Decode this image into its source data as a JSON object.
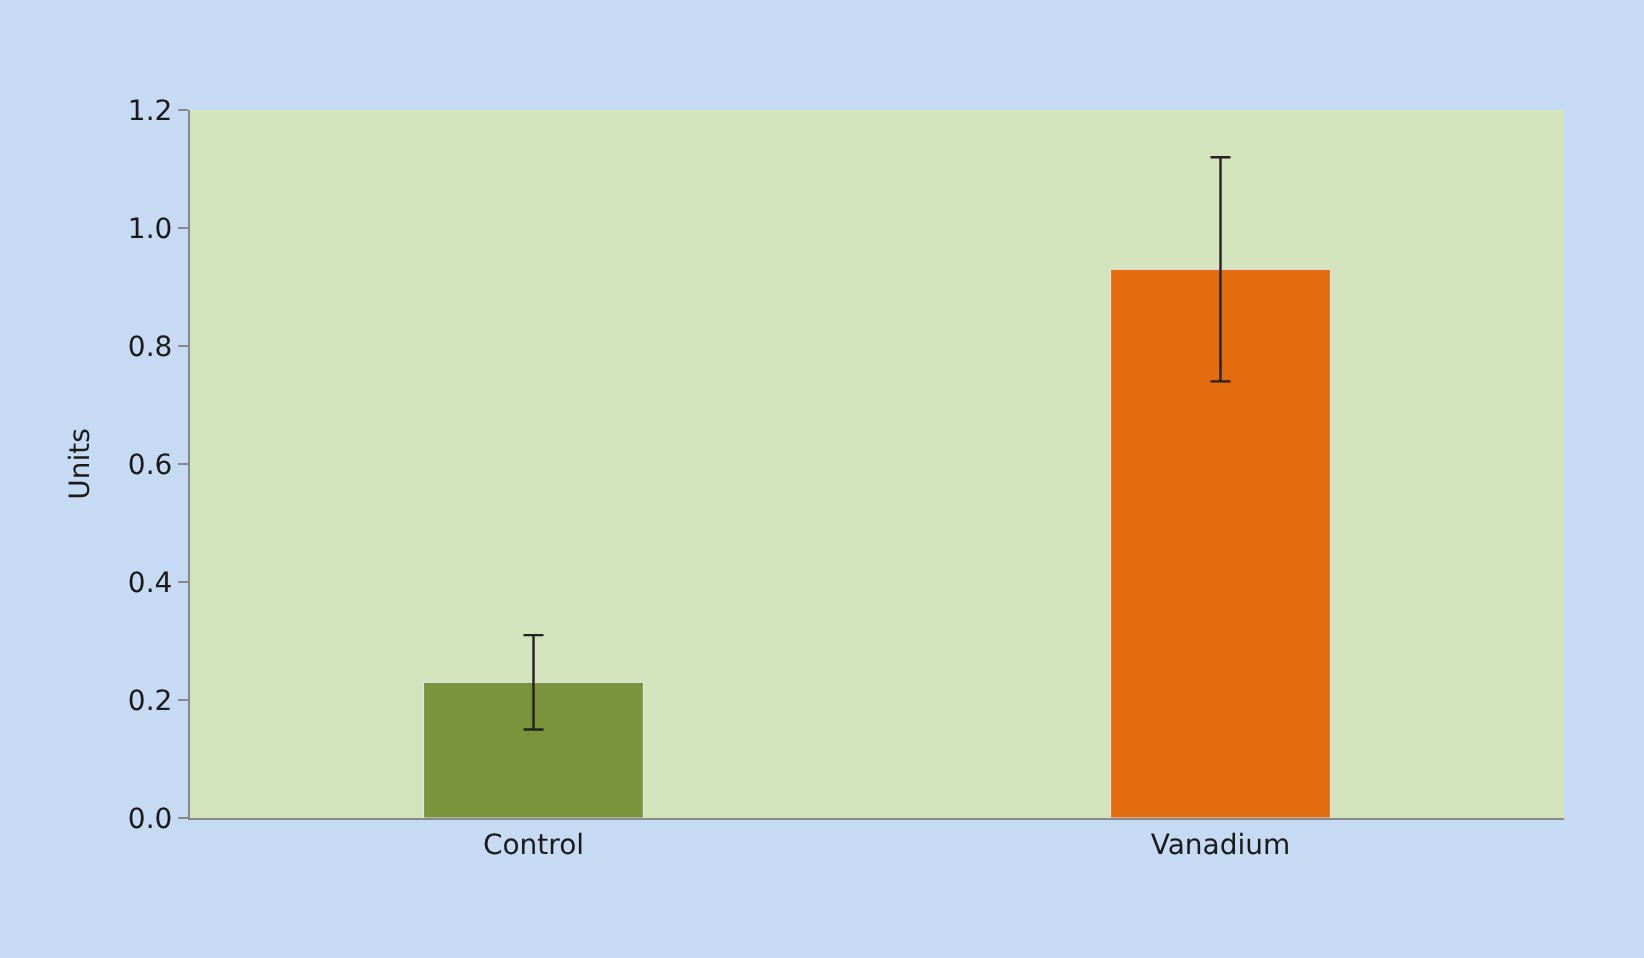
{
  "chart_data": {
    "type": "bar",
    "ylabel": "Units",
    "categories": [
      "Control",
      "Vanadium"
    ],
    "values": [
      0.23,
      0.93
    ],
    "colors": [
      "#7a943c",
      "#e36c0e"
    ],
    "errors": [
      0.08,
      0.19
    ],
    "ylim": [
      0,
      1.2
    ],
    "yticks": [
      {
        "value": 0,
        "label": "0.0"
      },
      0.2,
      0.4,
      0.6,
      0.8,
      {
        "value": 1,
        "label": "1.0"
      },
      1.2
    ],
    "grid": false,
    "legend": false
  }
}
